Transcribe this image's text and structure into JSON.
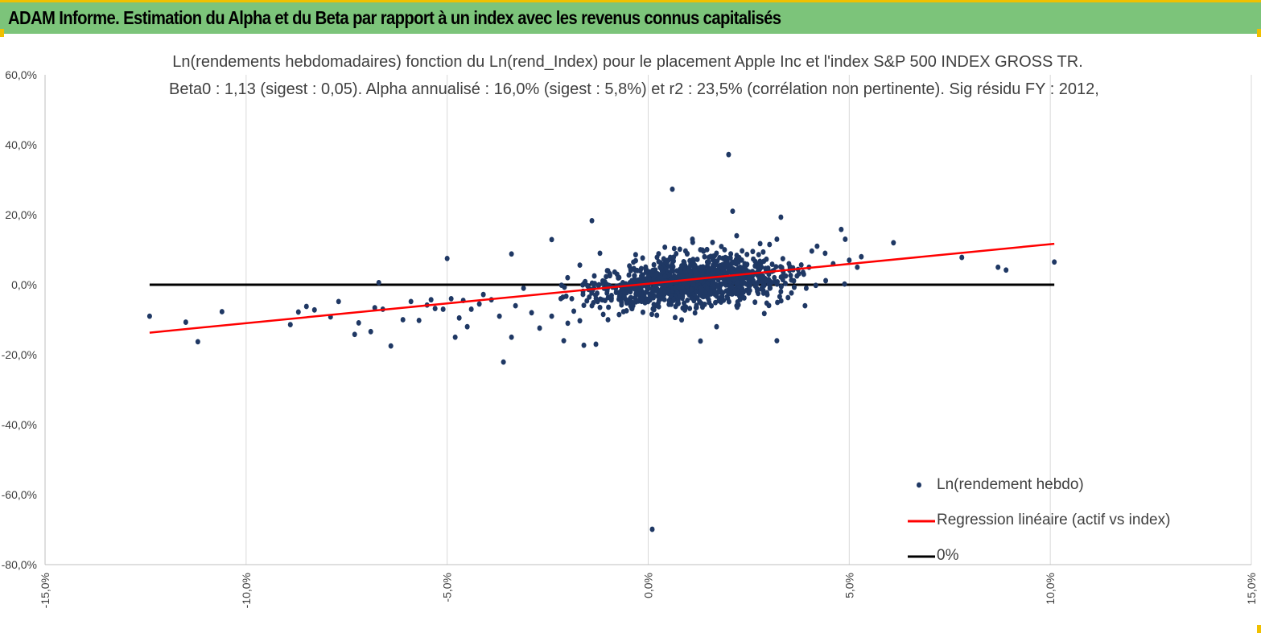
{
  "header": {
    "title": "ADAM Informe. Estimation du Alpha et du Beta par rapport à un index avec les revenus connus capitalisés"
  },
  "colors": {
    "header_bg": "#7cc47a",
    "accent": "#f0c000",
    "points": "#1f3864",
    "regression": "#ff0000",
    "zero_line": "#000000",
    "grid": "#d9d9d9"
  },
  "chart_data": {
    "type": "scatter",
    "title": "Ln(rendements hebdomadaires) fonction du Ln(rend_Index) pour le placement Apple Inc et l'index S&P 500 INDEX GROSS TR.",
    "subtitle": "Beta0 : 1,13 (sigest : 0,05).  Alpha annualisé : 16,0% (sigest : 5,8%) et r2 : 23,5% (corrélation non pertinente). Sig résidu FY : 2012,",
    "xlabel": "",
    "ylabel": "",
    "xlim": [
      -0.15,
      0.15
    ],
    "ylim": [
      -0.8,
      0.6
    ],
    "x_ticks": [
      -0.15,
      -0.1,
      -0.05,
      0.0,
      0.05,
      0.1,
      0.15
    ],
    "x_tick_labels": [
      "-15,0%",
      "-10,0%",
      "-5,0%",
      "0,0%",
      "5,0%",
      "10,0%",
      "15,0%"
    ],
    "y_ticks": [
      0.6,
      0.4,
      0.2,
      0.0,
      -0.2,
      -0.4,
      -0.6,
      -0.8
    ],
    "y_tick_labels": [
      "60,0%",
      "40,0%",
      "20,0%",
      "0,0%",
      "-20,0%",
      "-40,0%",
      "-60,0%",
      "-80,0%"
    ],
    "grid": "vertical",
    "legend_position": "bottom-right",
    "series": [
      {
        "name": "Ln(rendement hebdo)",
        "kind": "scatter",
        "color": "#1f3864",
        "points": [
          [
            -0.124,
            -0.09
          ],
          [
            -0.115,
            -0.107
          ],
          [
            -0.112,
            -0.163
          ],
          [
            -0.106,
            -0.077
          ],
          [
            -0.089,
            -0.114
          ],
          [
            -0.087,
            -0.078
          ],
          [
            -0.085,
            -0.062
          ],
          [
            -0.083,
            -0.072
          ],
          [
            -0.079,
            -0.092
          ],
          [
            -0.077,
            -0.048
          ],
          [
            -0.073,
            -0.142
          ],
          [
            -0.072,
            -0.109
          ],
          [
            -0.069,
            -0.134
          ],
          [
            -0.068,
            -0.066
          ],
          [
            -0.067,
            0.006
          ],
          [
            -0.066,
            -0.07
          ],
          [
            -0.064,
            -0.175
          ],
          [
            -0.061,
            -0.1
          ],
          [
            -0.059,
            -0.048
          ],
          [
            -0.057,
            -0.102
          ],
          [
            -0.055,
            -0.058
          ],
          [
            -0.054,
            -0.043
          ],
          [
            -0.053,
            -0.068
          ],
          [
            -0.051,
            -0.07
          ],
          [
            -0.049,
            -0.04
          ],
          [
            -0.047,
            -0.095
          ],
          [
            -0.05,
            0.075
          ],
          [
            -0.048,
            -0.15
          ],
          [
            -0.046,
            -0.045
          ],
          [
            -0.045,
            -0.12
          ],
          [
            -0.044,
            -0.07
          ],
          [
            -0.042,
            -0.055
          ],
          [
            -0.041,
            -0.028
          ],
          [
            -0.039,
            -0.043
          ],
          [
            -0.037,
            -0.09
          ],
          [
            -0.036,
            -0.221
          ],
          [
            -0.034,
            -0.15
          ],
          [
            -0.033,
            -0.06
          ],
          [
            -0.031,
            -0.01
          ],
          [
            -0.029,
            -0.08
          ],
          [
            -0.027,
            -0.124
          ],
          [
            -0.024,
            -0.09
          ],
          [
            -0.021,
            -0.16
          ],
          [
            -0.02,
            -0.11
          ],
          [
            -0.019,
            -0.04
          ],
          [
            -0.017,
            -0.103
          ],
          [
            -0.016,
            -0.173
          ],
          [
            -0.014,
            -0.06
          ],
          [
            -0.013,
            -0.17
          ],
          [
            -0.012,
            -0.065
          ],
          [
            -0.011,
            -0.01
          ],
          [
            -0.01,
            -0.1
          ],
          [
            -0.034,
            0.088
          ],
          [
            -0.024,
            0.129
          ],
          [
            -0.017,
            0.056
          ],
          [
            -0.014,
            0.183
          ],
          [
            -0.012,
            0.09
          ],
          [
            -0.01,
            0.04
          ],
          [
            0.001,
            -0.699
          ],
          [
            0.006,
            0.273
          ],
          [
            0.011,
            0.13
          ],
          [
            0.013,
            -0.161
          ],
          [
            0.014,
            0.08
          ],
          [
            0.016,
            0.121
          ],
          [
            0.018,
            0.045
          ],
          [
            0.017,
            -0.12
          ],
          [
            0.019,
            0.1
          ],
          [
            0.021,
            0.21
          ],
          [
            0.022,
            -0.06
          ],
          [
            0.02,
            0.372
          ],
          [
            0.022,
            0.14
          ],
          [
            0.024,
            0.06
          ],
          [
            0.026,
            0.095
          ],
          [
            0.028,
            0.05
          ],
          [
            0.03,
            0.03
          ],
          [
            0.032,
            -0.16
          ],
          [
            0.032,
            0.13
          ],
          [
            0.033,
            0.193
          ],
          [
            0.035,
            0.06
          ],
          [
            0.037,
            0.025
          ],
          [
            0.039,
            -0.06
          ],
          [
            0.04,
            0.05
          ],
          [
            0.042,
            0.11
          ],
          [
            0.044,
            0.09
          ],
          [
            0.046,
            0.06
          ],
          [
            0.048,
            0.158
          ],
          [
            0.049,
            0.13
          ],
          [
            0.05,
            0.07
          ],
          [
            0.052,
            0.05
          ],
          [
            0.053,
            0.08
          ],
          [
            0.061,
            0.12
          ],
          [
            0.078,
            0.078
          ],
          [
            0.087,
            0.05
          ],
          [
            0.089,
            0.042
          ],
          [
            0.101,
            0.065
          ]
        ]
      },
      {
        "name": "Regression linéaire (actif vs index)",
        "kind": "line",
        "color": "#ff0000",
        "points": [
          [
            -0.124,
            -0.137
          ],
          [
            0.101,
            0.117
          ]
        ]
      },
      {
        "name": "0%",
        "kind": "line",
        "color": "#000000",
        "points": [
          [
            -0.124,
            0.0
          ],
          [
            0.101,
            0.0
          ]
        ]
      }
    ]
  }
}
